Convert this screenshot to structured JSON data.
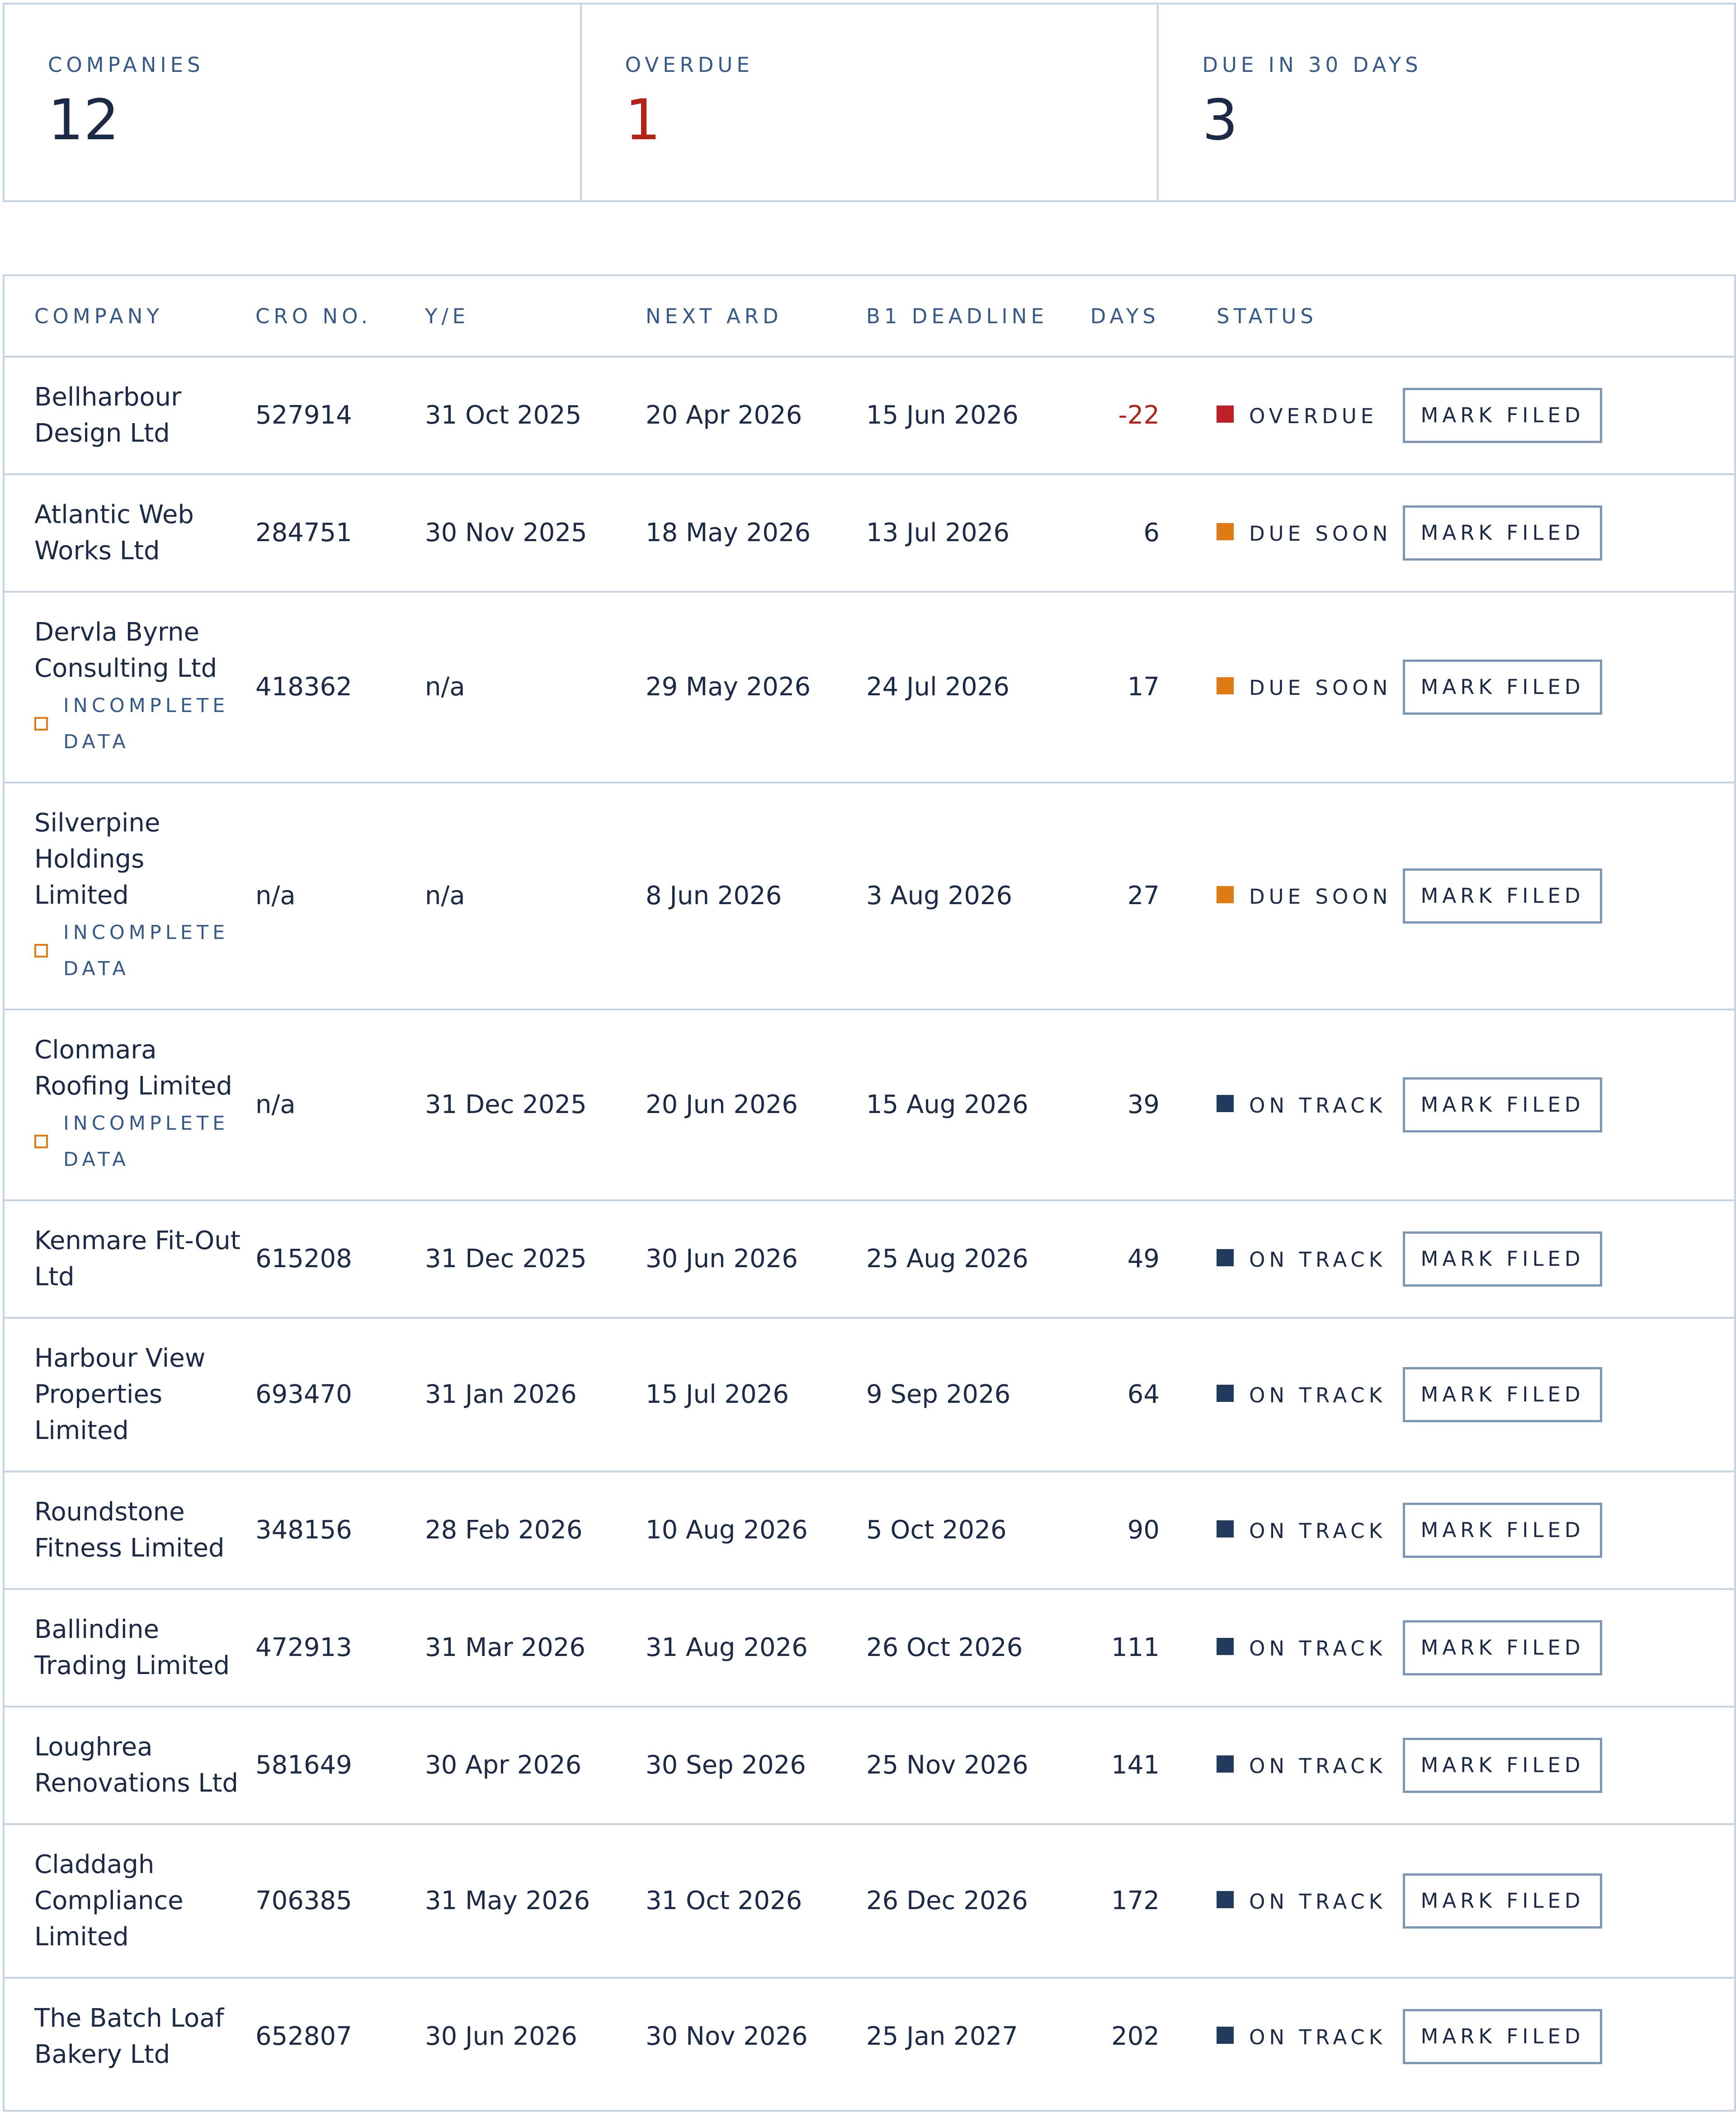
{
  "summary": {
    "companies_label": "COMPANIES",
    "companies_value": "12",
    "overdue_label": "OVERDUE",
    "overdue_value": "1",
    "due30_label": "DUE IN 30 DAYS",
    "due30_value": "3"
  },
  "table": {
    "columns": [
      "COMPANY",
      "CRO NO.",
      "Y/E",
      "NEXT ARD",
      "B1 DEADLINE",
      "DAYS",
      "STATUS"
    ],
    "action_label": "MARK FILED",
    "incomplete_label": "INCOMPLETE DATA",
    "status_colors": {
      "overdue": "#bf1f26",
      "due-soon": "#e07a12",
      "on-track": "#223a5e"
    },
    "rows": [
      {
        "company": "Bellharbour Design Ltd",
        "cro": "527914",
        "ye": "31 Oct 2025",
        "next_ard": "20 Apr 2026",
        "b1_deadline": "15 Jun 2026",
        "days": "-22",
        "status": "OVERDUE",
        "status_key": "overdue",
        "incomplete": false
      },
      {
        "company": "Atlantic Web Works Ltd",
        "cro": "284751",
        "ye": "30 Nov 2025",
        "next_ard": "18 May 2026",
        "b1_deadline": "13 Jul 2026",
        "days": "6",
        "status": "DUE SOON",
        "status_key": "due-soon",
        "incomplete": false
      },
      {
        "company": "Dervla Byrne Consulting Ltd",
        "cro": "418362",
        "ye": "n/a",
        "next_ard": "29 May 2026",
        "b1_deadline": "24 Jul 2026",
        "days": "17",
        "status": "DUE SOON",
        "status_key": "due-soon",
        "incomplete": true
      },
      {
        "company": "Silverpine Holdings Limited",
        "cro": "n/a",
        "ye": "n/a",
        "next_ard": "8 Jun 2026",
        "b1_deadline": "3 Aug 2026",
        "days": "27",
        "status": "DUE SOON",
        "status_key": "due-soon",
        "incomplete": true
      },
      {
        "company": "Clonmara Roofing Limited",
        "cro": "n/a",
        "ye": "31 Dec 2025",
        "next_ard": "20 Jun 2026",
        "b1_deadline": "15 Aug 2026",
        "days": "39",
        "status": "ON TRACK",
        "status_key": "on-track",
        "incomplete": true
      },
      {
        "company": "Kenmare Fit-Out Ltd",
        "cro": "615208",
        "ye": "31 Dec 2025",
        "next_ard": "30 Jun 2026",
        "b1_deadline": "25 Aug 2026",
        "days": "49",
        "status": "ON TRACK",
        "status_key": "on-track",
        "incomplete": false
      },
      {
        "company": "Harbour View Properties Limited",
        "cro": "693470",
        "ye": "31 Jan 2026",
        "next_ard": "15 Jul 2026",
        "b1_deadline": "9 Sep 2026",
        "days": "64",
        "status": "ON TRACK",
        "status_key": "on-track",
        "incomplete": false
      },
      {
        "company": "Roundstone Fitness Limited",
        "cro": "348156",
        "ye": "28 Feb 2026",
        "next_ard": "10 Aug 2026",
        "b1_deadline": "5 Oct 2026",
        "days": "90",
        "status": "ON TRACK",
        "status_key": "on-track",
        "incomplete": false
      },
      {
        "company": "Ballindine Trading Limited",
        "cro": "472913",
        "ye": "31 Mar 2026",
        "next_ard": "31 Aug 2026",
        "b1_deadline": "26 Oct 2026",
        "days": "111",
        "status": "ON TRACK",
        "status_key": "on-track",
        "incomplete": false
      },
      {
        "company": "Loughrea Renovations Ltd",
        "cro": "581649",
        "ye": "30 Apr 2026",
        "next_ard": "30 Sep 2026",
        "b1_deadline": "25 Nov 2026",
        "days": "141",
        "status": "ON TRACK",
        "status_key": "on-track",
        "incomplete": false
      },
      {
        "company": "Claddagh Compliance Limited",
        "cro": "706385",
        "ye": "31 May 2026",
        "next_ard": "31 Oct 2026",
        "b1_deadline": "26 Dec 2026",
        "days": "172",
        "status": "ON TRACK",
        "status_key": "on-track",
        "incomplete": false
      },
      {
        "company": "The Batch Loaf Bakery Ltd",
        "cro": "652807",
        "ye": "30 Jun 2026",
        "next_ard": "30 Nov 2026",
        "b1_deadline": "25 Jan 2027",
        "days": "202",
        "status": "ON TRACK",
        "status_key": "on-track",
        "incomplete": false
      }
    ]
  }
}
